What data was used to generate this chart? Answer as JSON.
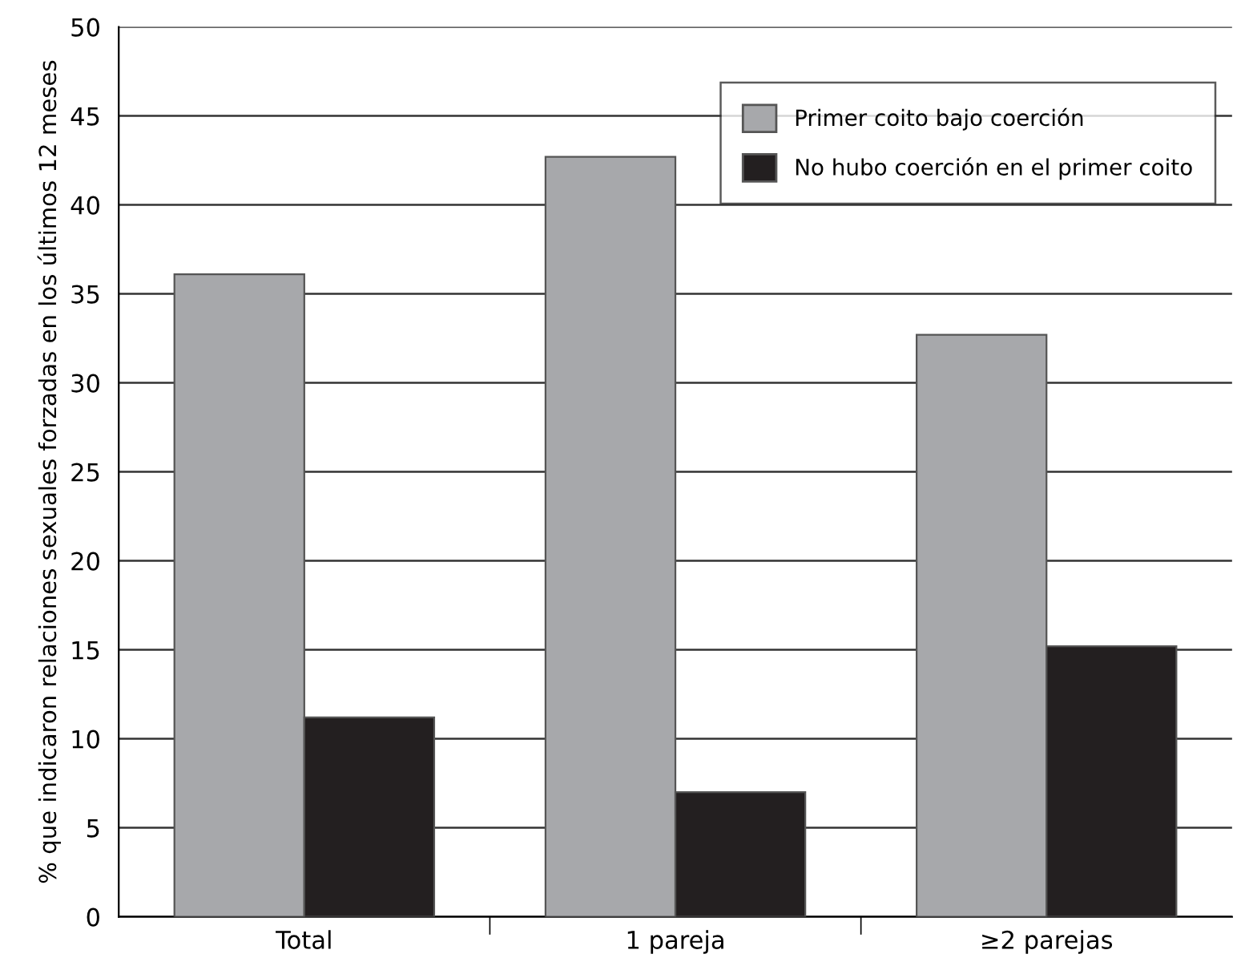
{
  "chart_data": {
    "type": "bar",
    "ylabel": "% que indicaron relaciones sexuales forzadas en los últimos 12 meses",
    "categories": [
      "Total",
      "1 pareja",
      "≥2 parejas"
    ],
    "series": [
      {
        "name": "Primer coito bajo coerción",
        "color": "#a7a8ab",
        "values": [
          36.1,
          42.7,
          32.7
        ]
      },
      {
        "name": "No hubo coerción en el primer coito",
        "color": "#231f20",
        "values": [
          11.2,
          7.0,
          15.2
        ]
      }
    ],
    "ylim": [
      0,
      50
    ],
    "yticks": [
      0,
      5,
      10,
      15,
      20,
      25,
      30,
      35,
      40,
      45,
      50
    ],
    "grid": "y",
    "legend": "top right"
  }
}
